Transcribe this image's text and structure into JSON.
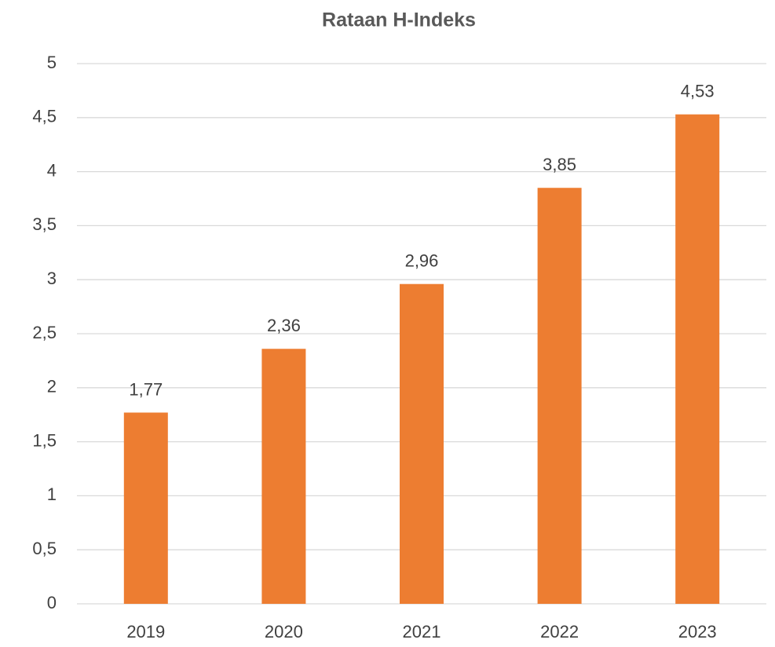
{
  "chart_data": {
    "type": "bar",
    "title": "Rataan H-Indeks",
    "categories": [
      "2019",
      "2020",
      "2021",
      "2022",
      "2023"
    ],
    "values": [
      1.77,
      2.36,
      2.96,
      3.85,
      4.53
    ],
    "value_labels": [
      "1,77",
      "2,36",
      "2,96",
      "3,85",
      "4,53"
    ],
    "color": "#ed7d31",
    "ylim": [
      0,
      5
    ],
    "yticks": [
      0,
      {
        "value": 0.5,
        "label": "0,5"
      },
      1,
      {
        "value": 1.5,
        "label": "1,5"
      },
      2,
      {
        "value": 2.5,
        "label": "2,5"
      },
      3,
      {
        "value": 3.5,
        "label": "3,5"
      },
      4,
      {
        "value": 4.5,
        "label": "4,5"
      },
      5
    ],
    "grid": true
  }
}
